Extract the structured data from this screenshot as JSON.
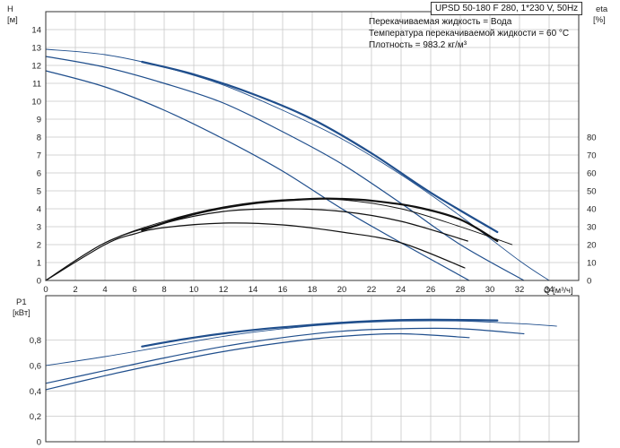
{
  "header": {
    "title": "UPSD 50-180 F 280, 1*230 V, 50Hz",
    "conditions": [
      "Перекачиваемая жидкость = Вода",
      "Температура перекачиваемой жидкости = 60 °C",
      "Плотность = 983.2 кг/м³"
    ]
  },
  "colors": {
    "blue": "#1f4e8c",
    "black": "#111111",
    "grid": "#c8c8c8"
  },
  "chart_data": [
    {
      "type": "line",
      "panel": "head-efficiency",
      "ylabel_left": [
        "H",
        "[м]"
      ],
      "ylabel_right": [
        "eta",
        "[%]"
      ],
      "xlabel": "Q [м³/ч]",
      "xlim": [
        0,
        36
      ],
      "ylim": [
        0,
        15
      ],
      "y2lim": [
        0,
        150
      ],
      "grid": true,
      "x_ticks": [
        0,
        2,
        4,
        6,
        8,
        10,
        12,
        14,
        16,
        18,
        20,
        22,
        24,
        26,
        28,
        30,
        32,
        34
      ],
      "x_tick_labels": [
        "0",
        "2",
        "4",
        "6",
        "8",
        "10",
        "12",
        "14",
        "16",
        "18",
        "20",
        "22",
        "24",
        "26",
        "28",
        "30",
        "32",
        "34"
      ],
      "y_ticks": [
        0,
        1,
        2,
        3,
        4,
        5,
        6,
        7,
        8,
        9,
        10,
        11,
        12,
        13,
        14
      ],
      "y_tick_labels": [
        "0",
        "1",
        "2",
        "3",
        "4",
        "5",
        "6",
        "7",
        "8",
        "9",
        "10",
        "11",
        "12",
        "13",
        "14"
      ],
      "y2_ticks": [
        0,
        10,
        20,
        30,
        40,
        50,
        60,
        70,
        80
      ],
      "y2_tick_labels": [
        "0",
        "10",
        "20",
        "30",
        "40",
        "50",
        "60",
        "70",
        "80"
      ],
      "series": [
        {
          "kind": "head-thin",
          "color": "blue",
          "width": 0.9,
          "x": [
            0,
            4,
            8,
            12,
            16,
            20,
            24,
            28,
            32,
            34
          ],
          "y": [
            12.9,
            12.6,
            11.9,
            10.9,
            9.5,
            7.9,
            5.9,
            3.6,
            1.1,
            0
          ]
        },
        {
          "kind": "head-bold",
          "color": "blue",
          "width": 2.2,
          "x": [
            6.5,
            10,
            14,
            18,
            22,
            26,
            30.5
          ],
          "y": [
            12.2,
            11.5,
            10.4,
            9.0,
            7.1,
            4.9,
            2.7
          ]
        },
        {
          "kind": "head",
          "color": "blue",
          "width": 1.2,
          "x": [
            0,
            4,
            8,
            12,
            16,
            20,
            24,
            28,
            32.3
          ],
          "y": [
            12.5,
            11.9,
            11.0,
            9.9,
            8.3,
            6.5,
            4.3,
            2.0,
            0
          ]
        },
        {
          "kind": "head",
          "color": "blue",
          "width": 1.2,
          "x": [
            0,
            4,
            8,
            12,
            16,
            20,
            24,
            28.6
          ],
          "y": [
            11.7,
            10.8,
            9.5,
            7.9,
            6.1,
            4.0,
            2.1,
            0
          ]
        },
        {
          "kind": "efficiency-thin",
          "color": "black",
          "width": 0.9,
          "x": [
            0,
            4,
            8,
            12,
            16,
            20,
            24,
            28,
            31.5
          ],
          "y2": [
            0,
            21,
            33,
            41,
            45,
            45,
            40,
            30,
            20
          ]
        },
        {
          "kind": "efficiency-bold",
          "color": "black",
          "width": 2.2,
          "x": [
            6.5,
            10,
            14,
            18,
            20,
            22,
            25,
            28,
            30.5
          ],
          "y2": [
            28,
            37,
            43,
            45.5,
            45.5,
            44.5,
            41,
            34,
            22
          ]
        },
        {
          "kind": "efficiency",
          "color": "black",
          "width": 1.2,
          "x": [
            0,
            4,
            8,
            12,
            16,
            20,
            24,
            28.5
          ],
          "y2": [
            0,
            21,
            32,
            38.5,
            40,
            38.5,
            33,
            22
          ]
        },
        {
          "kind": "efficiency",
          "color": "black",
          "width": 1.2,
          "x": [
            0,
            4,
            6,
            8,
            12,
            16,
            20,
            24,
            28.3
          ],
          "y2": [
            0,
            20,
            26,
            29.5,
            32,
            31,
            27,
            21,
            7
          ]
        }
      ]
    },
    {
      "type": "line",
      "panel": "power",
      "ylabel_left": [
        "P1",
        "[кВт]"
      ],
      "xlim": [
        0,
        36
      ],
      "ylim": [
        0,
        1.15
      ],
      "grid": true,
      "y_ticks": [
        0,
        0.2,
        0.4,
        0.6,
        0.8
      ],
      "y_tick_labels": [
        "0",
        "0,2",
        "0,4",
        "0,6",
        "0,8"
      ],
      "series": [
        {
          "kind": "power-thin",
          "color": "blue",
          "width": 0.9,
          "x": [
            0,
            4,
            8,
            12,
            16,
            20,
            24,
            28,
            32,
            34.5
          ],
          "y": [
            0.6,
            0.67,
            0.75,
            0.83,
            0.89,
            0.93,
            0.95,
            0.95,
            0.93,
            0.91
          ]
        },
        {
          "kind": "power-bold",
          "color": "blue",
          "width": 2.2,
          "x": [
            6.5,
            10,
            14,
            18,
            22,
            26,
            30.5
          ],
          "y": [
            0.75,
            0.82,
            0.88,
            0.92,
            0.95,
            0.96,
            0.955
          ]
        },
        {
          "kind": "power",
          "color": "blue",
          "width": 1.2,
          "x": [
            0,
            4,
            8,
            12,
            16,
            20,
            24,
            28,
            32.3
          ],
          "y": [
            0.46,
            0.56,
            0.66,
            0.75,
            0.82,
            0.87,
            0.89,
            0.89,
            0.85
          ]
        },
        {
          "kind": "power",
          "color": "blue",
          "width": 1.2,
          "x": [
            0,
            4,
            8,
            12,
            16,
            20,
            24,
            28.6
          ],
          "y": [
            0.41,
            0.52,
            0.62,
            0.71,
            0.78,
            0.83,
            0.85,
            0.82
          ]
        }
      ]
    }
  ]
}
